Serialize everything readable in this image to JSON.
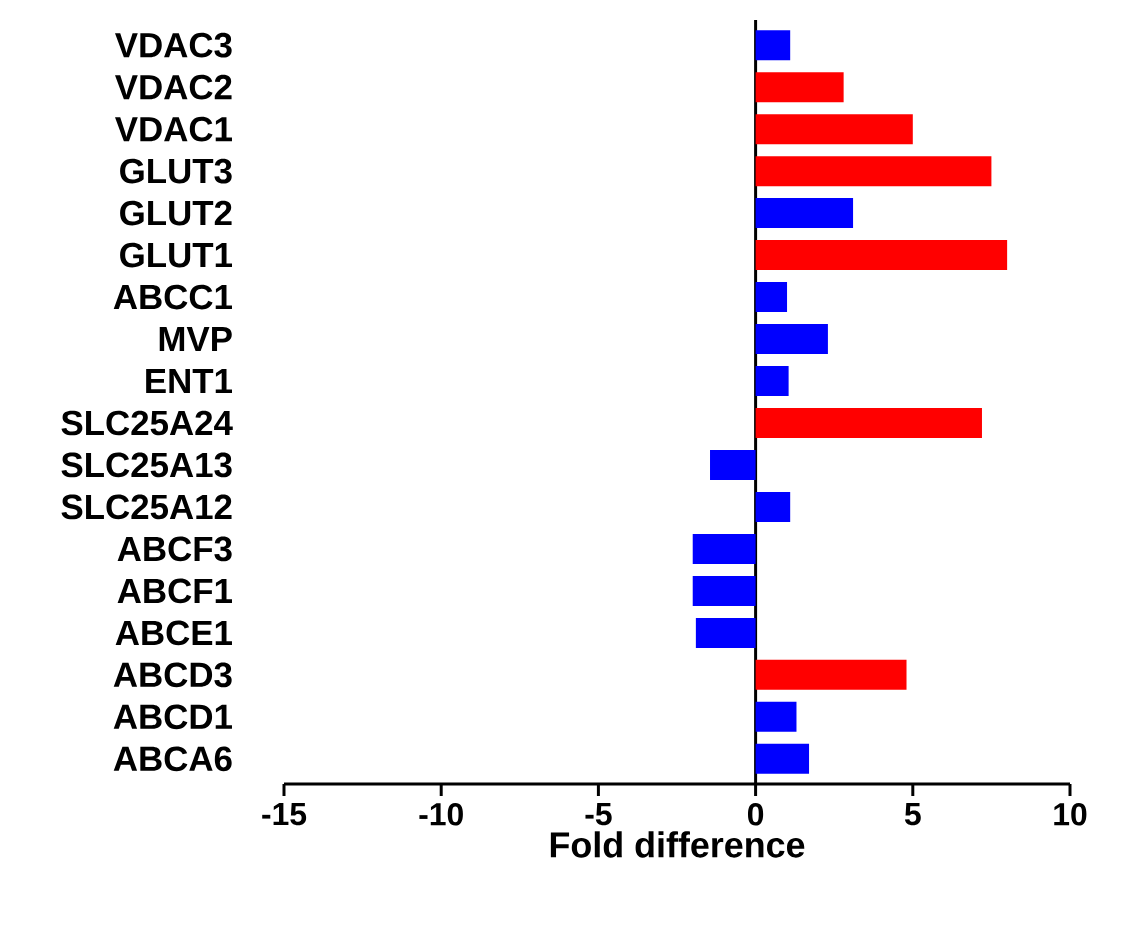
{
  "chart_data": {
    "type": "bar",
    "orientation": "horizontal",
    "xlabel": "Fold difference",
    "categories": [
      "VDAC3",
      "VDAC2",
      "VDAC1",
      "GLUT3",
      "GLUT2",
      "GLUT1",
      "ABCC1",
      "MVP",
      "ENT1",
      "SLC25A24",
      "SLC25A13",
      "SLC25A12",
      "ABCF3",
      "ABCF1",
      "ABCE1",
      "ABCD3",
      "ABCD1",
      "ABCA6"
    ],
    "values": [
      1.1,
      2.8,
      5.0,
      7.5,
      3.1,
      8.0,
      1.0,
      2.3,
      1.05,
      7.2,
      -1.45,
      1.1,
      -2.0,
      -2.0,
      -1.9,
      4.8,
      1.3,
      1.7
    ],
    "colors": [
      "#0000ff",
      "#ff0000",
      "#ff0000",
      "#ff0000",
      "#0000ff",
      "#ff0000",
      "#0000ff",
      "#0000ff",
      "#0000ff",
      "#ff0000",
      "#0000ff",
      "#0000ff",
      "#0000ff",
      "#0000ff",
      "#0000ff",
      "#ff0000",
      "#0000ff",
      "#0000ff"
    ],
    "xlim": [
      -15,
      10
    ],
    "xticks": [
      -15,
      -10,
      -5,
      0,
      5,
      10
    ]
  }
}
